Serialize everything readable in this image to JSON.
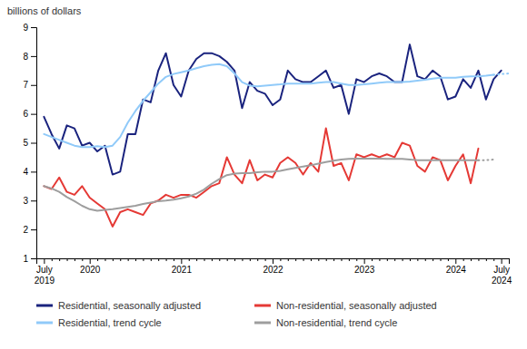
{
  "chart_data": {
    "type": "line",
    "ylabel": "billions of dollars",
    "ylim": [
      1,
      9
    ],
    "yticks": [
      1,
      2,
      3,
      4,
      5,
      6,
      7,
      8,
      9
    ],
    "grid": false,
    "legend": "bottom",
    "categories": [
      "July\n2019",
      null,
      null,
      null,
      null,
      null,
      "2020",
      null,
      null,
      null,
      null,
      null,
      null,
      null,
      null,
      null,
      null,
      null,
      "2021",
      null,
      null,
      null,
      null,
      null,
      null,
      null,
      null,
      null,
      null,
      null,
      "2022",
      null,
      null,
      null,
      null,
      null,
      null,
      null,
      null,
      null,
      null,
      null,
      "2023",
      null,
      null,
      null,
      null,
      null,
      null,
      null,
      null,
      null,
      null,
      null,
      "2024",
      null,
      null,
      null,
      null,
      null,
      "July\n2024",
      null
    ],
    "series": [
      {
        "name": "Residential, seasonally adjusted",
        "color": "#1a237e",
        "line_style": "solid",
        "values": [
          5.9,
          5.3,
          4.8,
          5.6,
          5.5,
          4.9,
          5.0,
          4.7,
          4.9,
          3.9,
          4.0,
          5.3,
          5.3,
          6.5,
          6.4,
          7.5,
          8.1,
          7.0,
          6.6,
          7.5,
          7.9,
          8.1,
          8.1,
          8.0,
          7.8,
          7.5,
          6.2,
          7.1,
          6.8,
          6.7,
          6.3,
          6.5,
          7.5,
          7.2,
          7.1,
          7.1,
          7.3,
          7.5,
          6.9,
          7.0,
          6.0,
          7.2,
          7.1,
          7.3,
          7.4,
          7.3,
          7.1,
          7.1,
          8.4,
          7.3,
          7.2,
          7.5,
          7.3,
          6.5,
          6.6,
          7.2,
          6.9,
          7.5,
          6.5,
          7.2,
          7.5,
          null
        ]
      },
      {
        "name": "Residential, trend cycle",
        "color": "#90caf9",
        "line_style": "solid",
        "values": [
          5.3,
          5.2,
          5.1,
          5.0,
          4.9,
          4.85,
          4.85,
          4.88,
          4.85,
          4.9,
          5.2,
          5.7,
          6.1,
          6.45,
          6.75,
          7.05,
          7.28,
          7.38,
          7.44,
          7.5,
          7.58,
          7.65,
          7.7,
          7.72,
          7.65,
          7.4,
          7.1,
          6.98,
          6.95,
          6.98,
          7.0,
          7.02,
          7.05,
          7.05,
          7.05,
          7.05,
          7.08,
          7.1,
          7.1,
          7.05,
          7.0,
          7.0,
          7.02,
          7.05,
          7.08,
          7.1,
          7.1,
          7.1,
          7.12,
          7.15,
          7.18,
          7.22,
          7.25,
          7.25,
          7.25,
          7.28,
          7.3,
          7.3,
          7.32,
          7.35,
          null,
          null
        ]
      },
      {
        "name": "Residential, trend cycle",
        "color": "#90caf9",
        "line_style": "dotted",
        "values": [
          null,
          null,
          null,
          null,
          null,
          null,
          null,
          null,
          null,
          null,
          null,
          null,
          null,
          null,
          null,
          null,
          null,
          null,
          null,
          null,
          null,
          null,
          null,
          null,
          null,
          null,
          null,
          null,
          null,
          null,
          null,
          null,
          null,
          null,
          null,
          null,
          null,
          null,
          null,
          null,
          null,
          null,
          null,
          null,
          null,
          null,
          null,
          null,
          null,
          null,
          null,
          null,
          null,
          null,
          null,
          null,
          null,
          null,
          null,
          7.35,
          7.38,
          7.4
        ]
      },
      {
        "name": "Non-residential, seasonally adjusted",
        "color": "#e53935",
        "line_style": "solid",
        "values": [
          3.5,
          3.4,
          3.8,
          3.3,
          3.2,
          3.5,
          3.1,
          2.9,
          2.7,
          2.1,
          2.6,
          2.7,
          2.6,
          2.5,
          2.9,
          3.0,
          3.2,
          3.1,
          3.2,
          3.2,
          3.1,
          3.3,
          3.5,
          3.6,
          4.5,
          3.9,
          3.6,
          4.4,
          3.7,
          3.9,
          3.8,
          4.3,
          4.5,
          4.3,
          3.9,
          4.3,
          4.0,
          5.5,
          4.2,
          4.3,
          3.7,
          4.6,
          4.5,
          4.6,
          4.5,
          4.6,
          4.5,
          5.0,
          4.9,
          4.2,
          4.0,
          4.5,
          4.4,
          3.7,
          4.2,
          4.6,
          3.6,
          4.8,
          null,
          null,
          null,
          null
        ]
      },
      {
        "name": "Non-residential, trend cycle",
        "color": "#9e9e9e",
        "line_style": "solid",
        "values": [
          3.5,
          3.42,
          3.3,
          3.12,
          2.98,
          2.82,
          2.7,
          2.65,
          2.68,
          2.7,
          2.74,
          2.78,
          2.82,
          2.88,
          2.93,
          2.98,
          3.0,
          3.03,
          3.08,
          3.14,
          3.24,
          3.38,
          3.58,
          3.74,
          3.88,
          3.93,
          3.95,
          3.95,
          3.98,
          4.0,
          4.0,
          4.03,
          4.08,
          4.13,
          4.18,
          4.22,
          4.28,
          4.33,
          4.38,
          4.42,
          4.44,
          4.45,
          4.45,
          4.45,
          4.45,
          4.44,
          4.44,
          4.44,
          4.42,
          4.4,
          4.4,
          4.4,
          4.4,
          4.4,
          4.4,
          4.4,
          4.4,
          4.4,
          null,
          null,
          null,
          null
        ]
      },
      {
        "name": "Non-residential, trend cycle",
        "color": "#9e9e9e",
        "line_style": "dotted",
        "values": [
          null,
          null,
          null,
          null,
          null,
          null,
          null,
          null,
          null,
          null,
          null,
          null,
          null,
          null,
          null,
          null,
          null,
          null,
          null,
          null,
          null,
          null,
          null,
          null,
          null,
          null,
          null,
          null,
          null,
          null,
          null,
          null,
          null,
          null,
          null,
          null,
          null,
          null,
          null,
          null,
          null,
          null,
          null,
          null,
          null,
          null,
          null,
          null,
          null,
          null,
          null,
          null,
          null,
          null,
          null,
          null,
          null,
          4.4,
          4.4,
          4.42,
          null,
          null
        ]
      }
    ]
  }
}
